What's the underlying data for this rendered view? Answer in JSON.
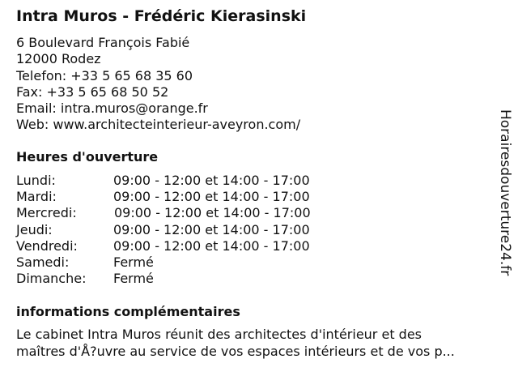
{
  "title": "Intra Muros - Frédéric Kierasinski",
  "contact": {
    "address": "6 Boulevard François Fabié",
    "city": "12000 Rodez",
    "phone": "Telefon: +33 5 65 68 35 60",
    "fax": "Fax: +33 5 65 68 50 52",
    "email": "Email: intra.muros@orange.fr",
    "web": "Web: www.architecteinterieur-aveyron.com/"
  },
  "hours": {
    "heading": "Heures d'ouverture",
    "days": [
      {
        "day": "Lundi:",
        "time": "09:00 - 12:00 et 14:00 - 17:00"
      },
      {
        "day": "Mardi:",
        "time": "09:00 - 12:00 et 14:00 - 17:00"
      },
      {
        "day": "Mercredi:",
        "time": "09:00 - 12:00 et 14:00 - 17:00"
      },
      {
        "day": "Jeudi:",
        "time": "09:00 - 12:00 et 14:00 - 17:00"
      },
      {
        "day": "Vendredi:",
        "time": "09:00 - 12:00 et 14:00 - 17:00"
      },
      {
        "day": "Samedi:",
        "time": "Fermé"
      },
      {
        "day": "Dimanche:",
        "time": "Fermé"
      }
    ]
  },
  "info": {
    "heading": "informations complémentaires",
    "line1": "Le cabinet Intra Muros réunit des architectes d'intérieur et des",
    "line2": "maîtres d'Å?uvre au service de vos espaces intérieurs et de vos p..."
  },
  "watermark": "Horairesdouverture24.fr"
}
